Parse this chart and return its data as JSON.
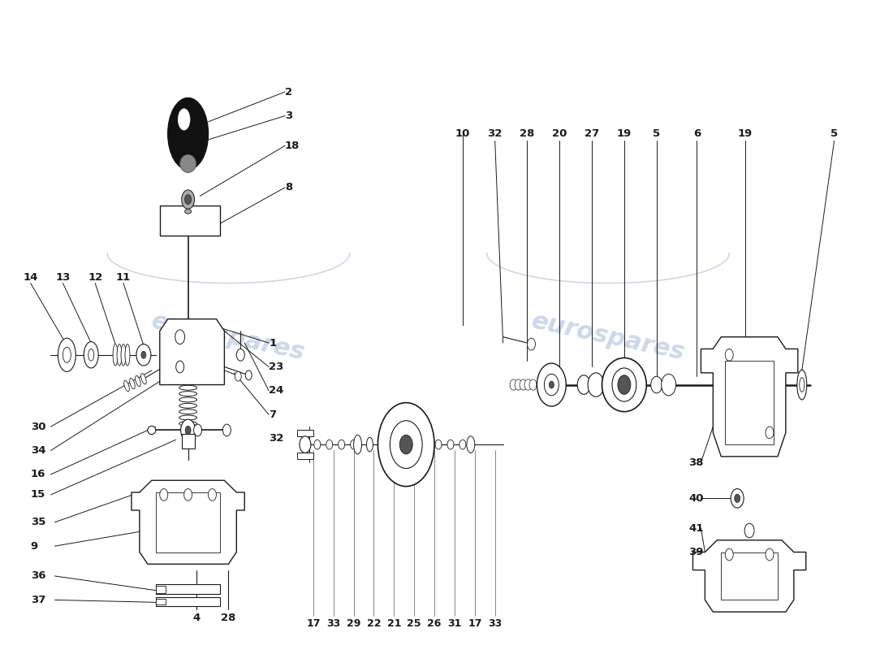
{
  "bg": "#ffffff",
  "lc": "#1a1a1a",
  "wm_color": "#c8d4e8",
  "wm_text": "eurospares",
  "lfs": 9.5,
  "lfw": "bold"
}
